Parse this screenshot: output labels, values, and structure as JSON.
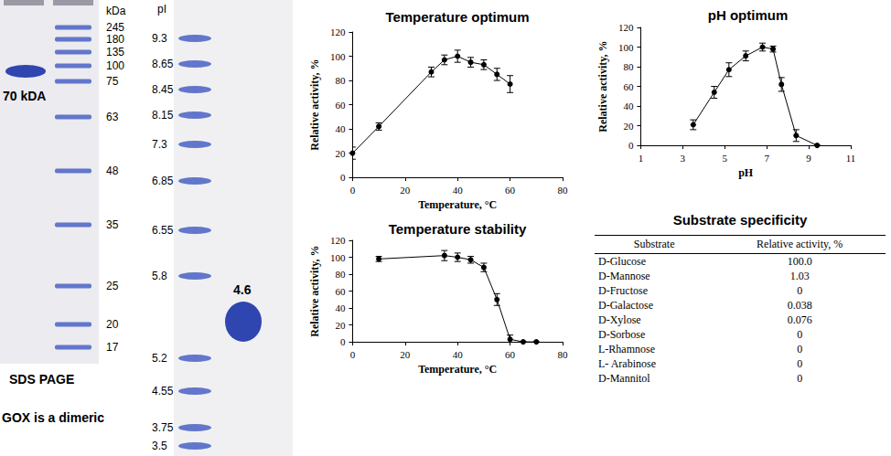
{
  "sds_page": {
    "label": "SDS PAGE",
    "unit": "kDa",
    "markers": [
      245,
      180,
      135,
      100,
      75,
      63,
      48,
      35,
      25,
      20,
      17
    ],
    "band_label": "70 kDA",
    "caption": "GOX is a dimeric"
  },
  "ief": {
    "unit": "pI",
    "markers": [
      9.3,
      8.65,
      8.45,
      8.15,
      7.3,
      6.85,
      6.55,
      5.8,
      5.2,
      4.55,
      3.75,
      3.5
    ],
    "band_label": "4.6"
  },
  "chart_data": [
    {
      "type": "line",
      "title": "Temperature optimum",
      "x_label": "Temperature, °C",
      "y_label": "Relative activity, %",
      "x": [
        0,
        10,
        30,
        35,
        40,
        45,
        50,
        55,
        60
      ],
      "values": [
        20,
        42,
        87,
        97,
        100,
        95,
        93,
        85,
        77
      ],
      "errors": [
        5,
        3,
        4,
        4,
        5,
        4,
        4,
        5,
        7
      ],
      "xlim": [
        0,
        80
      ],
      "xticks": [
        0,
        20,
        40,
        60,
        80
      ],
      "ylim": [
        0,
        120
      ],
      "yticks": [
        0,
        20,
        40,
        60,
        80,
        100,
        120
      ],
      "color": "#000000",
      "marker": "circle",
      "line_style": "solid",
      "grid": false
    },
    {
      "type": "line",
      "title": "pH optimum",
      "x_label": "pH",
      "y_label": "Relative activity, %",
      "x": [
        3.5,
        4.5,
        5.2,
        6,
        6.8,
        7.3,
        7.7,
        8.4,
        9.4
      ],
      "values": [
        21,
        54,
        77,
        91,
        100,
        98,
        62,
        10,
        0
      ],
      "errors": [
        5,
        6,
        7,
        5,
        4,
        3,
        7,
        6,
        0
      ],
      "xlim": [
        1,
        11
      ],
      "xticks": [
        1,
        3,
        5,
        7,
        9,
        11
      ],
      "ylim": [
        0,
        120
      ],
      "yticks": [
        0,
        20,
        40,
        60,
        80,
        100,
        120
      ],
      "color": "#000000",
      "marker": "circle",
      "line_style": "solid",
      "grid": false
    },
    {
      "type": "line",
      "title": "Temperature stability",
      "x_label": "Temperature, °C",
      "y_label": "Relative activity, %",
      "x": [
        10,
        35,
        40,
        45,
        50,
        55,
        60,
        65,
        70
      ],
      "values": [
        98,
        102,
        100,
        97,
        88,
        50,
        3,
        0,
        0
      ],
      "errors": [
        3,
        6,
        5,
        4,
        5,
        7,
        5,
        0,
        0
      ],
      "xlim": [
        0,
        80
      ],
      "xticks": [
        0,
        20,
        40,
        60,
        80
      ],
      "ylim": [
        0,
        120
      ],
      "yticks": [
        0,
        20,
        40,
        60,
        80,
        100,
        120
      ],
      "color": "#000000",
      "marker": "circle",
      "line_style": "solid",
      "grid": false
    }
  ],
  "table": {
    "title": "Substrate specificity",
    "header": [
      "Substrate",
      "Relative activity, %"
    ],
    "rows": [
      [
        "D-Glucose",
        "100.0"
      ],
      [
        "D-Mannose",
        "1.03"
      ],
      [
        "D-Fructose",
        "0"
      ],
      [
        "D-Galactose",
        "0.038"
      ],
      [
        "D-Xylose",
        "0.076"
      ],
      [
        "D-Sorbose",
        "0"
      ],
      [
        "L-Rhamnose",
        "0"
      ],
      [
        "L- Arabinose",
        "0"
      ],
      [
        "D-Mannitol",
        "0"
      ]
    ]
  }
}
